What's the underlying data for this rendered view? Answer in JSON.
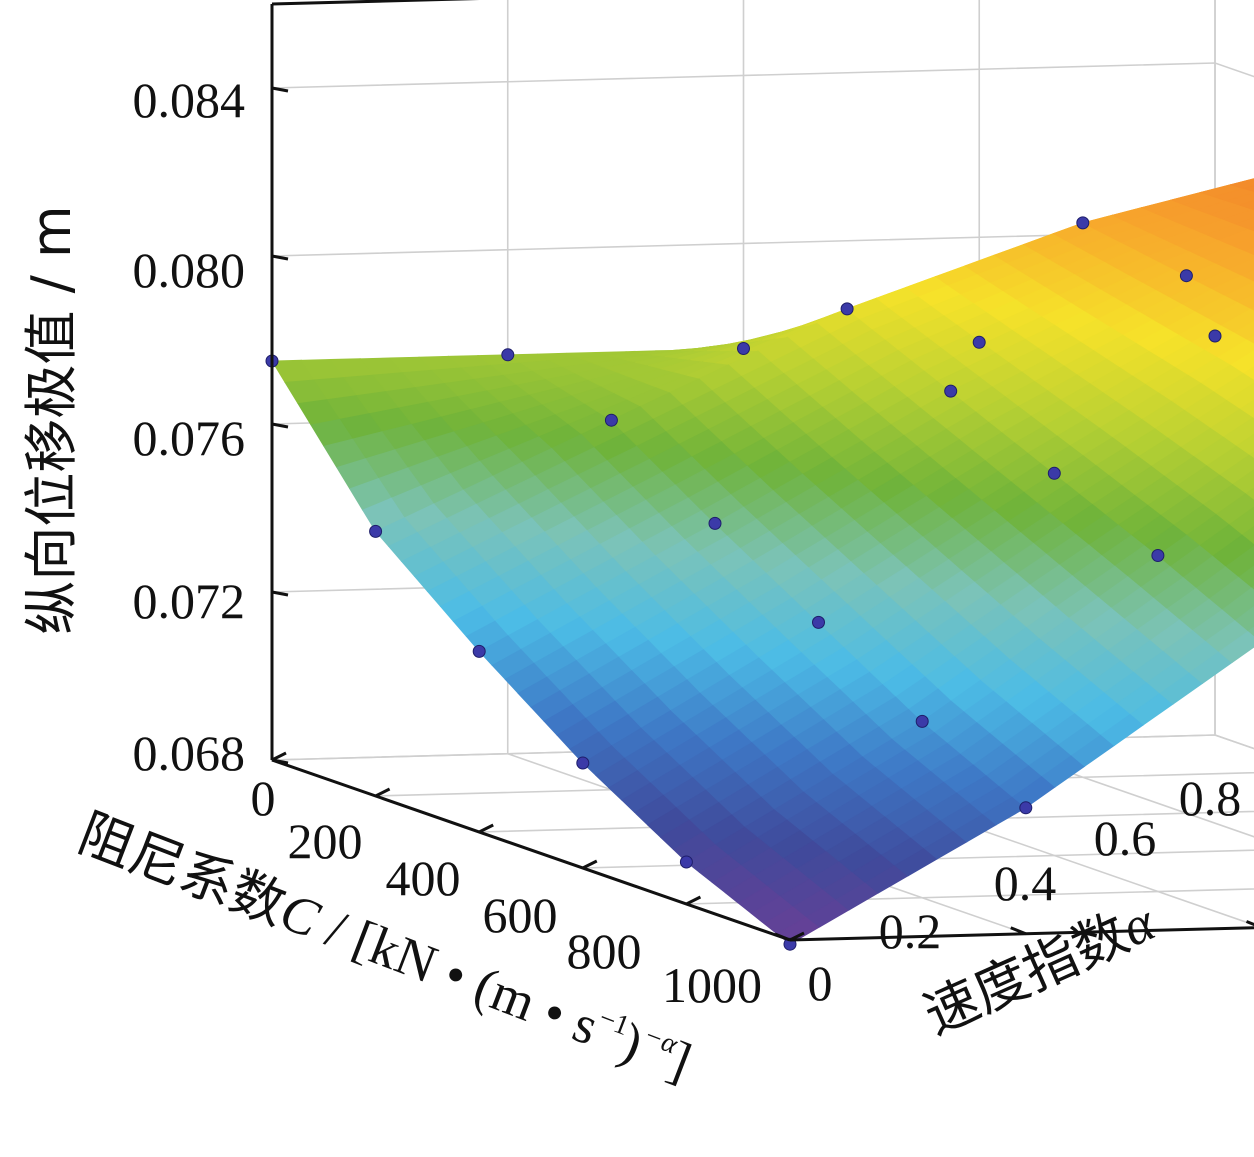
{
  "chart_data": {
    "type": "surface3d",
    "x_axis": {
      "label_prefix": "阻尼系数",
      "label_var": "C",
      "label_unit": " / [kN • (m • s",
      "label_exp1": "−1",
      "label_close": ")",
      "label_exp2": "−α",
      "label_end": "]",
      "ticks": [
        "0",
        "200",
        "400",
        "600",
        "800",
        "1000"
      ],
      "range": [
        0,
        1000
      ]
    },
    "y_axis": {
      "label_prefix": "速度指数",
      "label_var": "α",
      "ticks": [
        "0",
        "0.2",
        "0.4",
        "0.6",
        "0.8"
      ],
      "range": [
        0,
        0.8
      ]
    },
    "z_axis": {
      "label": "纵向位移极值 / m",
      "ticks": [
        "0.068",
        "0.072",
        "0.076",
        "0.080",
        "0.084"
      ],
      "range": [
        0.068,
        0.086
      ]
    },
    "grid": true,
    "colormap": [
      "#6a3f96",
      "#3f4a9b",
      "#3e78c6",
      "#4cbce6",
      "#7cc3b8",
      "#6fb33a",
      "#b7d033",
      "#f6e22a",
      "#f7a32c",
      "#ee6a2a",
      "#e02a24"
    ],
    "surface_color_high": "#e02a24",
    "surface_color_low": "#6a3f96",
    "point_color": "#3b3aa8",
    "grid_c": [
      0,
      200,
      400,
      600,
      800,
      1000
    ],
    "grid_alpha": [
      0,
      0.2,
      0.4,
      0.6,
      0.8
    ],
    "points": [
      {
        "c": 0,
        "a": 0,
        "z": 0.0775
      },
      {
        "c": 0,
        "a": 0.2,
        "z": 0.0775
      },
      {
        "c": 0,
        "a": 0.4,
        "z": 0.0775
      },
      {
        "c": 0,
        "a": 0.6,
        "z": 0.0775
      },
      {
        "c": 0,
        "a": 0.8,
        "z": 0.0775
      },
      {
        "c": 200,
        "a": 0,
        "z": 0.0743
      },
      {
        "c": 200,
        "a": 0.2,
        "z": 0.0768
      },
      {
        "c": 200,
        "a": 0.4,
        "z": 0.0793
      },
      {
        "c": 200,
        "a": 0.6,
        "z": 0.0812
      },
      {
        "c": 200,
        "a": 0.8,
        "z": 0.0825
      },
      {
        "c": 400,
        "a": 0,
        "z": 0.0723
      },
      {
        "c": 400,
        "a": 0.2,
        "z": 0.0752
      },
      {
        "c": 400,
        "a": 0.4,
        "z": 0.0782
      },
      {
        "c": 400,
        "a": 0.6,
        "z": 0.0808
      },
      {
        "c": 400,
        "a": 0.8,
        "z": 0.083
      },
      {
        "c": 600,
        "a": 0,
        "z": 0.0705
      },
      {
        "c": 600,
        "a": 0.2,
        "z": 0.0737
      },
      {
        "c": 600,
        "a": 0.4,
        "z": 0.0771
      },
      {
        "c": 600,
        "a": 0.6,
        "z": 0.0804
      },
      {
        "c": 600,
        "a": 0.8,
        "z": 0.0835
      },
      {
        "c": 800,
        "a": 0,
        "z": 0.069
      },
      {
        "c": 800,
        "a": 0.2,
        "z": 0.0722
      },
      {
        "c": 800,
        "a": 0.4,
        "z": 0.076
      },
      {
        "c": 800,
        "a": 0.6,
        "z": 0.0798
      },
      {
        "c": 800,
        "a": 0.8,
        "z": 0.084
      },
      {
        "c": 1000,
        "a": 0,
        "z": 0.0679
      },
      {
        "c": 1000,
        "a": 0.2,
        "z": 0.071
      },
      {
        "c": 1000,
        "a": 0.4,
        "z": 0.0748
      },
      {
        "c": 1000,
        "a": 0.6,
        "z": 0.079
      },
      {
        "c": 1000,
        "a": 0.8,
        "z": 0.0848
      }
    ]
  }
}
